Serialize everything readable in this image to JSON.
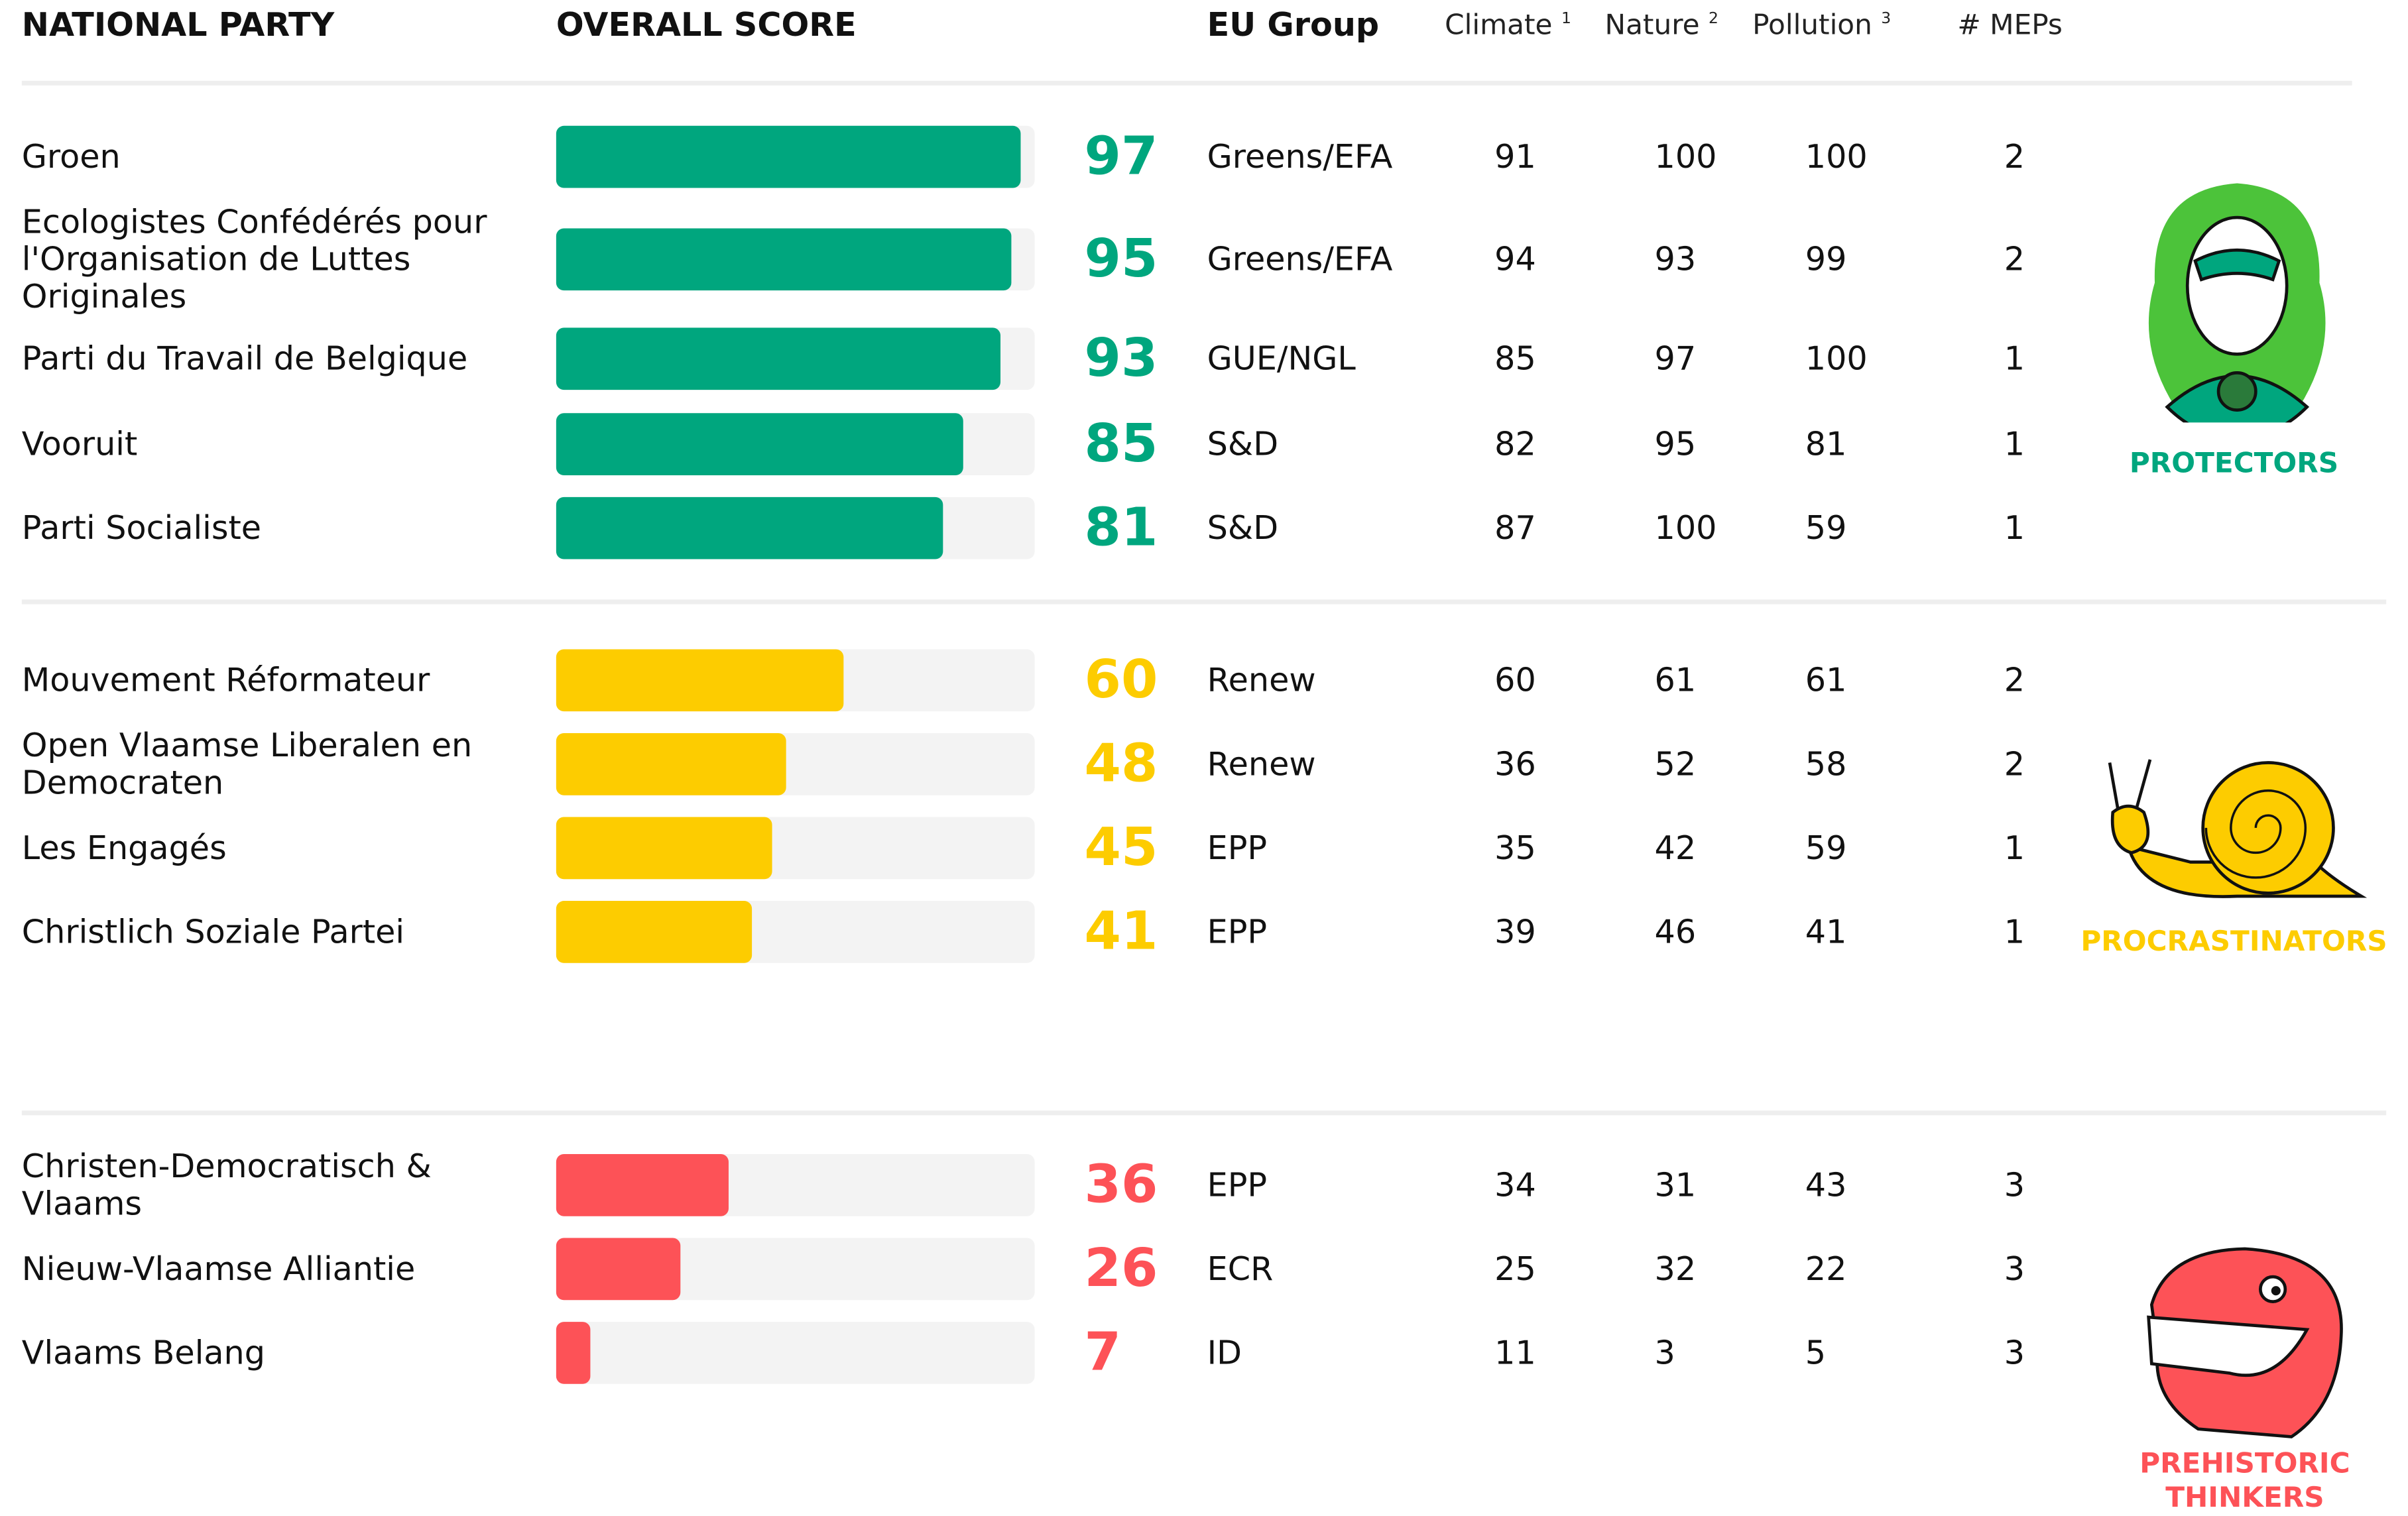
{
  "header": {
    "party": "NATIONAL PARTY",
    "score": "OVERALL SCORE",
    "eu_group": "EU Group",
    "climate": "Climate",
    "climate_note": "1",
    "nature": "Nature",
    "nature_note": "2",
    "pollution": "Pollution",
    "pollution_note": "3",
    "meps": "# MEPs"
  },
  "xlim": [
    0,
    100
  ],
  "groups": [
    {
      "label": "PROTECTORS",
      "color": "#00a67e",
      "rows": [
        {
          "party": "Groen",
          "score": 97,
          "eu_group": "Greens/EFA",
          "climate": 91,
          "nature": 100,
          "pollution": 100,
          "meps": 2
        },
        {
          "party": "Ecologistes Confédérés pour l'Organisation de Luttes Originales",
          "score": 95,
          "eu_group": "Greens/EFA",
          "climate": 94,
          "nature": 93,
          "pollution": 99,
          "meps": 2
        },
        {
          "party": "Parti du Travail de Belgique",
          "score": 93,
          "eu_group": "GUE/NGL",
          "climate": 85,
          "nature": 97,
          "pollution": 100,
          "meps": 1
        },
        {
          "party": "Vooruit",
          "score": 85,
          "eu_group": "S&D",
          "climate": 82,
          "nature": 95,
          "pollution": 81,
          "meps": 1
        },
        {
          "party": "Parti Socialiste",
          "score": 81,
          "eu_group": "S&D",
          "climate": 87,
          "nature": 100,
          "pollution": 59,
          "meps": 1
        }
      ]
    },
    {
      "label": "PROCRASTINATORS",
      "color": "#fdcc00",
      "rows": [
        {
          "party": "Mouvement Réformateur",
          "score": 60,
          "eu_group": "Renew",
          "climate": 60,
          "nature": 61,
          "pollution": 61,
          "meps": 2
        },
        {
          "party": "Open Vlaamse Liberalen en Democraten",
          "score": 48,
          "eu_group": "Renew",
          "climate": 36,
          "nature": 52,
          "pollution": 58,
          "meps": 2
        },
        {
          "party": "Les Engagés",
          "score": 45,
          "eu_group": "EPP",
          "climate": 35,
          "nature": 42,
          "pollution": 59,
          "meps": 1
        },
        {
          "party": "Christlich Soziale Partei",
          "score": 41,
          "eu_group": "EPP",
          "climate": 39,
          "nature": 46,
          "pollution": 41,
          "meps": 1
        }
      ]
    },
    {
      "label": "PREHISTORIC THINKERS",
      "color": "#fd5257",
      "rows": [
        {
          "party": "Christen-Democratisch & Vlaams",
          "score": 36,
          "eu_group": "EPP",
          "climate": 34,
          "nature": 31,
          "pollution": 43,
          "meps": 3
        },
        {
          "party": "Nieuw-Vlaamse Alliantie",
          "score": 26,
          "eu_group": "ECR",
          "climate": 25,
          "nature": 32,
          "pollution": 22,
          "meps": 3
        },
        {
          "party": "Vlaams Belang",
          "score": 7,
          "eu_group": "ID",
          "climate": 11,
          "nature": 3,
          "pollution": 5,
          "meps": 3
        }
      ]
    }
  ]
}
